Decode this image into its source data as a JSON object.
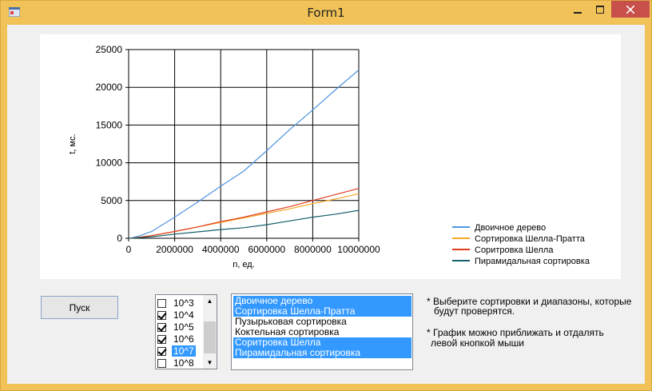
{
  "window": {
    "title": "Form1"
  },
  "colors": {
    "frame": "#f0c257",
    "close": "#c7504a",
    "selection": "#3399ff"
  },
  "chart_data": {
    "type": "line",
    "title": "",
    "xlabel": "n, ед.",
    "ylabel": "t, мс.",
    "xlim": [
      0,
      10000000
    ],
    "ylim": [
      0,
      25000
    ],
    "x_ticks": [
      "0",
      "2000000",
      "4000000",
      "6000000",
      "8000000",
      "10000000"
    ],
    "y_ticks": [
      "0",
      "5000",
      "10000",
      "15000",
      "20000",
      "25000"
    ],
    "grid": true,
    "legend_position": "bottom-right",
    "x": [
      0,
      100000,
      500000,
      1000000,
      2000000,
      3000000,
      4000000,
      5000000,
      6000000,
      7000000,
      8000000,
      9000000,
      10000000
    ],
    "series": [
      {
        "name": "Двоичное дерево",
        "color": "#4f94de",
        "values": [
          0,
          30,
          350,
          900,
          2800,
          4800,
          6900,
          8900,
          11600,
          14400,
          17000,
          19700,
          22300
        ]
      },
      {
        "name": "Сортировка Шелла-Пратта",
        "color": "#f6a623",
        "values": [
          0,
          15,
          150,
          350,
          900,
          1500,
          2100,
          2700,
          3300,
          3900,
          4600,
          5200,
          5900
        ]
      },
      {
        "name": "Соритровка Шелла",
        "color": "#e03c1f",
        "values": [
          0,
          15,
          150,
          350,
          900,
          1500,
          2200,
          2800,
          3500,
          4200,
          5000,
          5800,
          6600
        ]
      },
      {
        "name": "Пирамидальная сортировка",
        "color": "#135f6b",
        "values": [
          0,
          10,
          80,
          200,
          550,
          850,
          1150,
          1400,
          1800,
          2300,
          2800,
          3200,
          3700
        ]
      }
    ]
  },
  "start_button": {
    "label": "Пуск"
  },
  "ranges": {
    "items": [
      {
        "label": "10^3",
        "checked": false,
        "selected": false
      },
      {
        "label": "10^4",
        "checked": true,
        "selected": false
      },
      {
        "label": "10^5",
        "checked": true,
        "selected": false
      },
      {
        "label": "10^6",
        "checked": true,
        "selected": false
      },
      {
        "label": "10^7",
        "checked": true,
        "selected": true
      },
      {
        "label": "10^8",
        "checked": false,
        "selected": false
      }
    ],
    "scroll_up": "▲",
    "scroll_down": "▼"
  },
  "sorts": {
    "items": [
      {
        "label": "Двоичное дерево",
        "selected": true
      },
      {
        "label": "Сортировка Шелла-Пратта",
        "selected": true
      },
      {
        "label": "Пузырьковая сортировка",
        "selected": false
      },
      {
        "label": "Коктельная сортировка",
        "selected": false
      },
      {
        "label": "Соритровка Шелла",
        "selected": true
      },
      {
        "label": "Пирамидальная сортировка",
        "selected": true
      }
    ]
  },
  "hints": {
    "line1": "* Выберите сортировки и диапазоны, которые",
    "line2": "будут проверятся.",
    "line3": "* График можно приближать и отдалять",
    "line4": "левой кнопкой мыши"
  }
}
